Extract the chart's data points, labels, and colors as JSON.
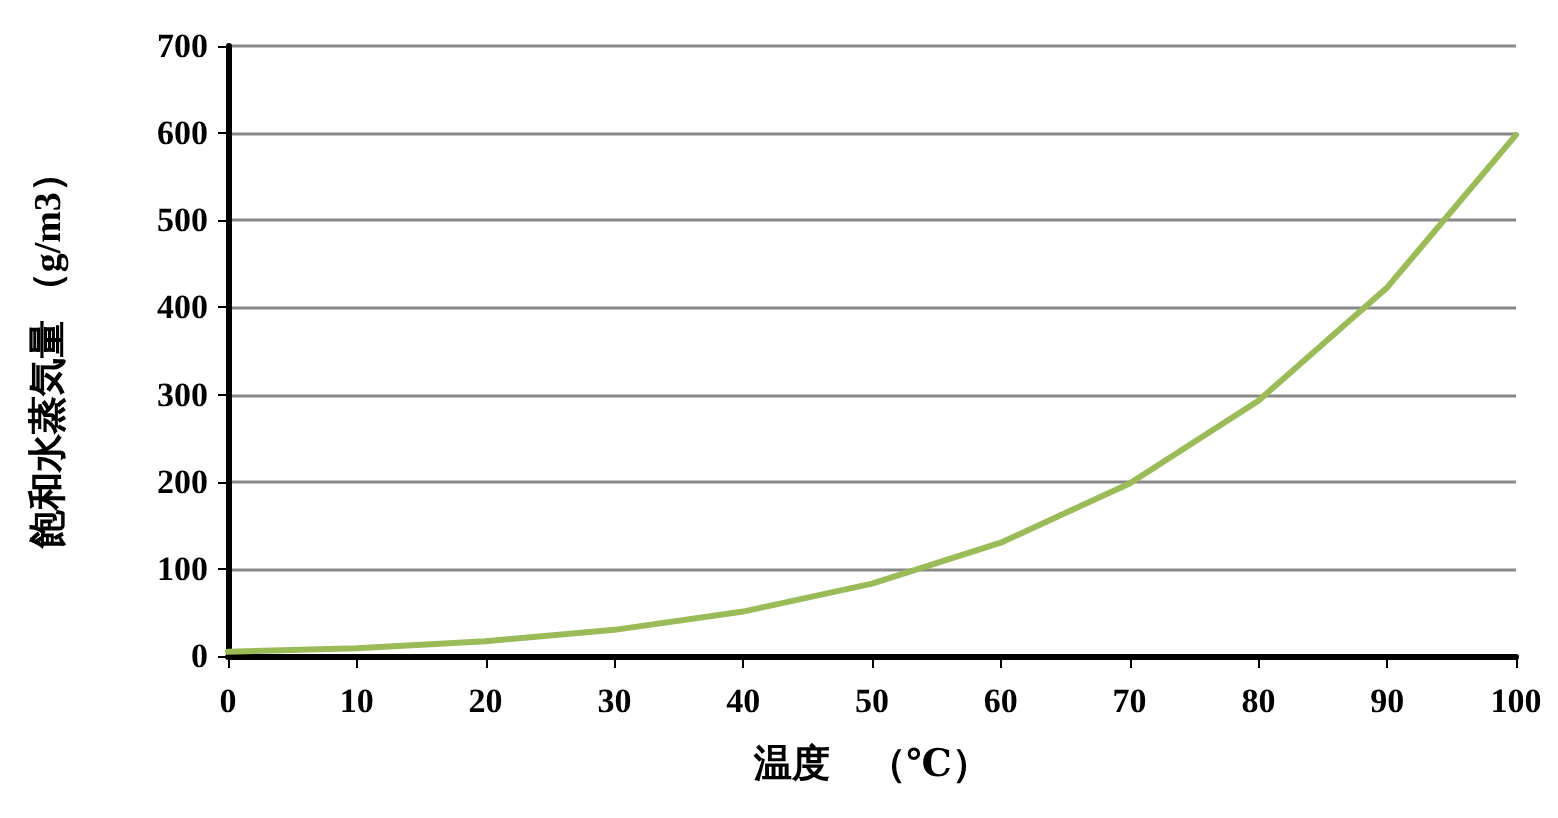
{
  "chart_data": {
    "type": "line",
    "xlabel": "温度　（℃）",
    "ylabel": "飽和水蒸気量 （g/m3）",
    "x": [
      0,
      10,
      20,
      30,
      40,
      50,
      60,
      70,
      80,
      90,
      100
    ],
    "series": [
      {
        "color": "#9bbb59",
        "values": [
          5,
          9,
          17,
          30,
          51,
          83,
          130,
          198,
          293,
          423,
          598
        ]
      }
    ],
    "xlim": [
      0,
      100
    ],
    "xticks": [
      0,
      10,
      20,
      30,
      40,
      50,
      60,
      70,
      80,
      90,
      100
    ],
    "ylim": [
      0,
      700
    ],
    "yticks": [
      0,
      100,
      200,
      300,
      400,
      500,
      600,
      700
    ],
    "grid": "y",
    "marker": "none",
    "line_style": "solid"
  }
}
